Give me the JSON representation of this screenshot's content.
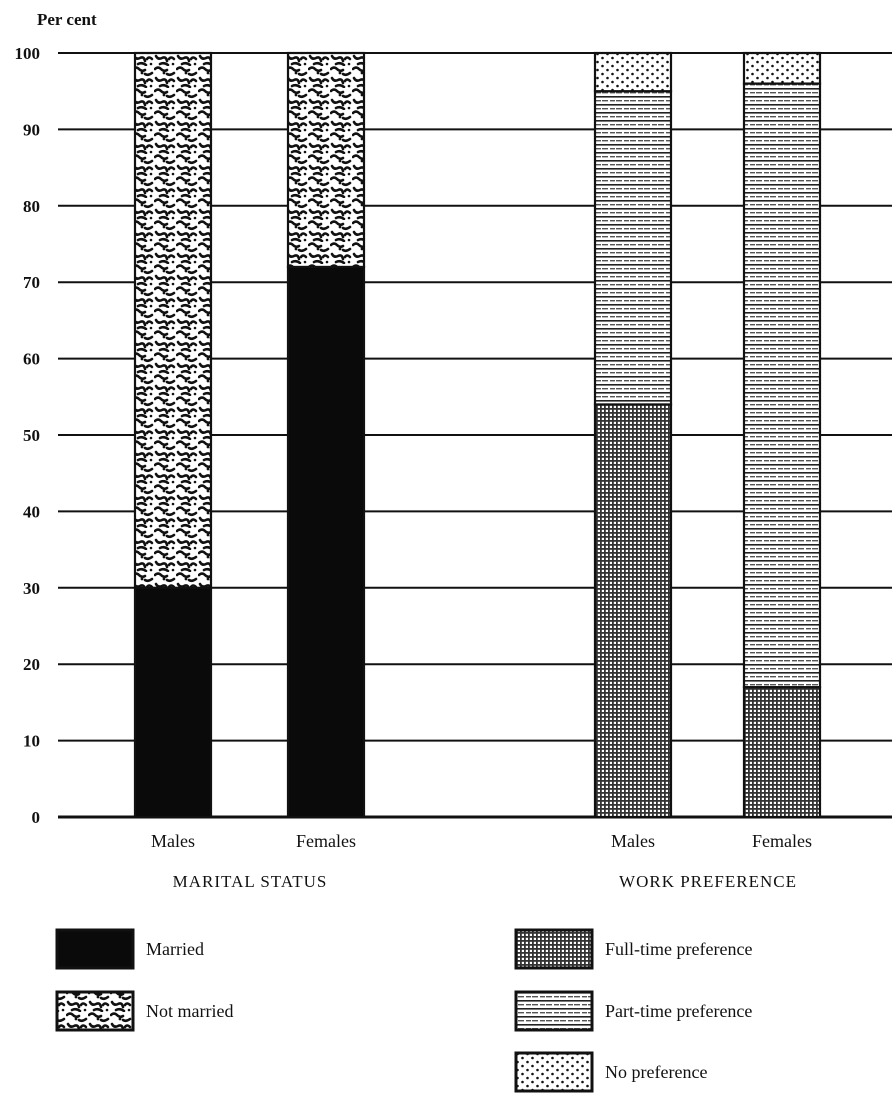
{
  "chart_data": {
    "type": "bar",
    "stacked": true,
    "ylabel": "Per cent",
    "ylim": [
      0,
      100
    ],
    "yticks": [
      0,
      10,
      20,
      30,
      40,
      50,
      60,
      70,
      80,
      90,
      100
    ],
    "grid": true,
    "groups": [
      {
        "label": "MARITAL STATUS",
        "categories": [
          "Males",
          "Females"
        ],
        "series": [
          {
            "name": "Married",
            "values": [
              30,
              72
            ],
            "pattern": "solid"
          },
          {
            "name": "Not married",
            "values": [
              70,
              28
            ],
            "pattern": "mottled"
          }
        ]
      },
      {
        "label": "WORK PREFERENCE",
        "categories": [
          "Males",
          "Females"
        ],
        "series": [
          {
            "name": "Full-time preference",
            "values": [
              54,
              17
            ],
            "pattern": "crosshatch"
          },
          {
            "name": "Part-time preference",
            "values": [
              41,
              79
            ],
            "pattern": "hlines"
          },
          {
            "name": "No preference",
            "values": [
              5,
              4
            ],
            "pattern": "dots"
          }
        ]
      }
    ],
    "legend": [
      {
        "name": "Married",
        "pattern": "solid"
      },
      {
        "name": "Not married",
        "pattern": "mottled"
      },
      {
        "name": "Full-time preference",
        "pattern": "crosshatch"
      },
      {
        "name": "Part-time preference",
        "pattern": "hlines"
      },
      {
        "name": "No preference",
        "pattern": "dots"
      }
    ]
  }
}
